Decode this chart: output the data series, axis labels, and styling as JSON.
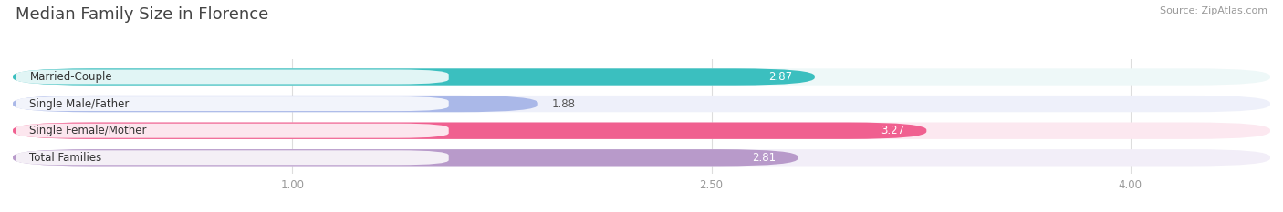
{
  "title": "Median Family Size in Florence",
  "source": "Source: ZipAtlas.com",
  "categories": [
    "Married-Couple",
    "Single Male/Father",
    "Single Female/Mother",
    "Total Families"
  ],
  "values": [
    2.87,
    1.88,
    3.27,
    2.81
  ],
  "bar_colors": [
    "#3bbfbf",
    "#aab8e8",
    "#f06090",
    "#b89aca"
  ],
  "bar_bg_colors": [
    "#eef8f8",
    "#eef0fa",
    "#fce8f0",
    "#f2eef8"
  ],
  "value_text_colors": [
    "#ffffff",
    "#555555",
    "#ffffff",
    "#ffffff"
  ],
  "xlim_data": [
    0.0,
    4.5
  ],
  "xstart": 0.0,
  "xticks": [
    1.0,
    2.5,
    4.0
  ],
  "xtick_labels": [
    "1.00",
    "2.50",
    "4.00"
  ],
  "background_color": "#ffffff",
  "bar_height": 0.62,
  "label_fontsize": 8.5,
  "value_fontsize": 8.5,
  "title_fontsize": 13,
  "source_fontsize": 8
}
